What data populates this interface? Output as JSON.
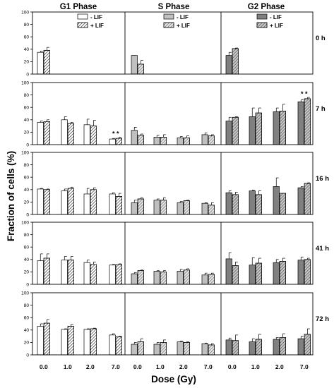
{
  "chart_data": {
    "type": "bar",
    "phases": [
      "G1 Phase",
      "S Phase",
      "G2 Phase"
    ],
    "doses": [
      "0.0",
      "1.0",
      "2.0",
      "7.0"
    ],
    "xlabel": "Dose (Gy)",
    "ylabel": "Fraction of cells (%)",
    "ylim": [
      0,
      100
    ],
    "yticks": [
      "0",
      "20",
      "40",
      "60",
      "80",
      "100"
    ],
    "legend": [
      {
        "label": "-  LIF",
        "style": "open"
      },
      {
        "label": "+ LIF",
        "style": "hatched"
      }
    ],
    "colors": {
      "g1": "#ffffff",
      "s": "#c0c0c0",
      "g2": "#808080",
      "hatch": "#000000"
    },
    "rows": [
      {
        "time": "0 h",
        "series": {
          "minus_lif": [
            [
              35,
              null,
              null,
              null
            ],
            [
              30,
              null,
              null,
              null
            ],
            [
              30,
              null,
              null,
              null
            ]
          ],
          "plus_lif": [
            [
              38,
              null,
              null,
              null
            ],
            [
              16,
              null,
              null,
              null
            ],
            [
              41,
              null,
              null,
              null
            ]
          ]
        },
        "errors": {
          "minus_lif": [
            [
              2,
              0,
              0,
              0
            ],
            [
              0,
              0,
              0,
              0
            ],
            [
              5,
              0,
              0,
              0
            ]
          ],
          "plus_lif": [
            [
              5,
              0,
              0,
              0
            ],
            [
              6,
              0,
              0,
              0
            ],
            [
              1,
              0,
              0,
              0
            ]
          ]
        },
        "stars": []
      },
      {
        "time": "7 h",
        "series": {
          "minus_lif": [
            [
              36,
              40,
              32,
              9
            ],
            [
              23,
              12,
              11,
              16
            ],
            [
              38,
              45,
              53,
              69
            ]
          ],
          "plus_lif": [
            [
              37,
              34,
              30,
              10
            ],
            [
              15,
              12,
              11,
              14
            ],
            [
              44,
              51,
              54,
              74
            ]
          ]
        },
        "errors": {
          "minus_lif": [
            [
              2,
              5,
              9,
              1
            ],
            [
              5,
              3,
              2,
              3
            ],
            [
              6,
              14,
              6,
              3
            ]
          ],
          "plus_lif": [
            [
              3,
              2,
              9,
              2
            ],
            [
              2,
              4,
              3,
              2
            ],
            [
              1,
              8,
              11,
              2
            ]
          ]
        },
        "stars": [
          {
            "phase": 0,
            "dose": 3,
            "text": "* *"
          },
          {
            "phase": 2,
            "dose": 3,
            "text": "* *"
          }
        ]
      },
      {
        "time": "16 h",
        "series": {
          "minus_lif": [
            [
              41,
              38,
              33,
              33
            ],
            [
              19,
              23,
              19,
              18
            ],
            [
              35,
              38,
              45,
              43
            ]
          ],
          "plus_lif": [
            [
              40,
              42,
              40,
              29
            ],
            [
              25,
              23,
              22,
              15
            ],
            [
              32,
              32,
              34,
              50
            ]
          ]
        },
        "errors": {
          "minus_lif": [
            [
              1,
              3,
              9,
              2
            ],
            [
              4,
              2,
              2,
              1
            ],
            [
              3,
              1,
              14,
              2
            ]
          ],
          "plus_lif": [
            [
              1,
              2,
              3,
              5
            ],
            [
              2,
              4,
              1,
              4
            ],
            [
              4,
              6,
              0,
              1
            ]
          ]
        },
        "stars": []
      },
      {
        "time": "41 h",
        "series": {
          "minus_lif": [
            [
              38,
              39,
              35,
              31
            ],
            [
              17,
              21,
              21,
              15
            ],
            [
              41,
              31,
              35,
              39
            ]
          ],
          "plus_lif": [
            [
              42,
              39,
              32,
              32
            ],
            [
              22,
              20,
              23,
              16
            ],
            [
              30,
              34,
              37,
              40
            ]
          ]
        },
        "errors": {
          "minus_lif": [
            [
              11,
              6,
              4,
              1
            ],
            [
              2,
              1,
              3,
              3
            ],
            [
              10,
              12,
              5,
              5
            ]
          ],
          "plus_lif": [
            [
              7,
              6,
              4,
              1
            ],
            [
              1,
              2,
              2,
              2
            ],
            [
              6,
              8,
              5,
              2
            ]
          ]
        },
        "stars": []
      },
      {
        "time": "72 h",
        "series": {
          "minus_lif": [
            [
              46,
              41,
              41,
              32
            ],
            [
              17,
              17,
              21,
              18
            ],
            [
              24,
              21,
              25,
              26
            ]
          ],
          "plus_lif": [
            [
              51,
              46,
              42,
              29
            ],
            [
              21,
              20,
              20,
              16
            ],
            [
              23,
              25,
              28,
              33
            ]
          ]
        },
        "errors": {
          "minus_lif": [
            [
              4,
              1,
              1,
              2
            ],
            [
              3,
              3,
              1,
              1
            ],
            [
              3,
              5,
              3,
              4
            ]
          ],
          "plus_lif": [
            [
              6,
              3,
              1,
              1
            ],
            [
              5,
              4,
              1,
              2
            ],
            [
              9,
              8,
              6,
              9
            ]
          ]
        },
        "stars": []
      }
    ]
  }
}
